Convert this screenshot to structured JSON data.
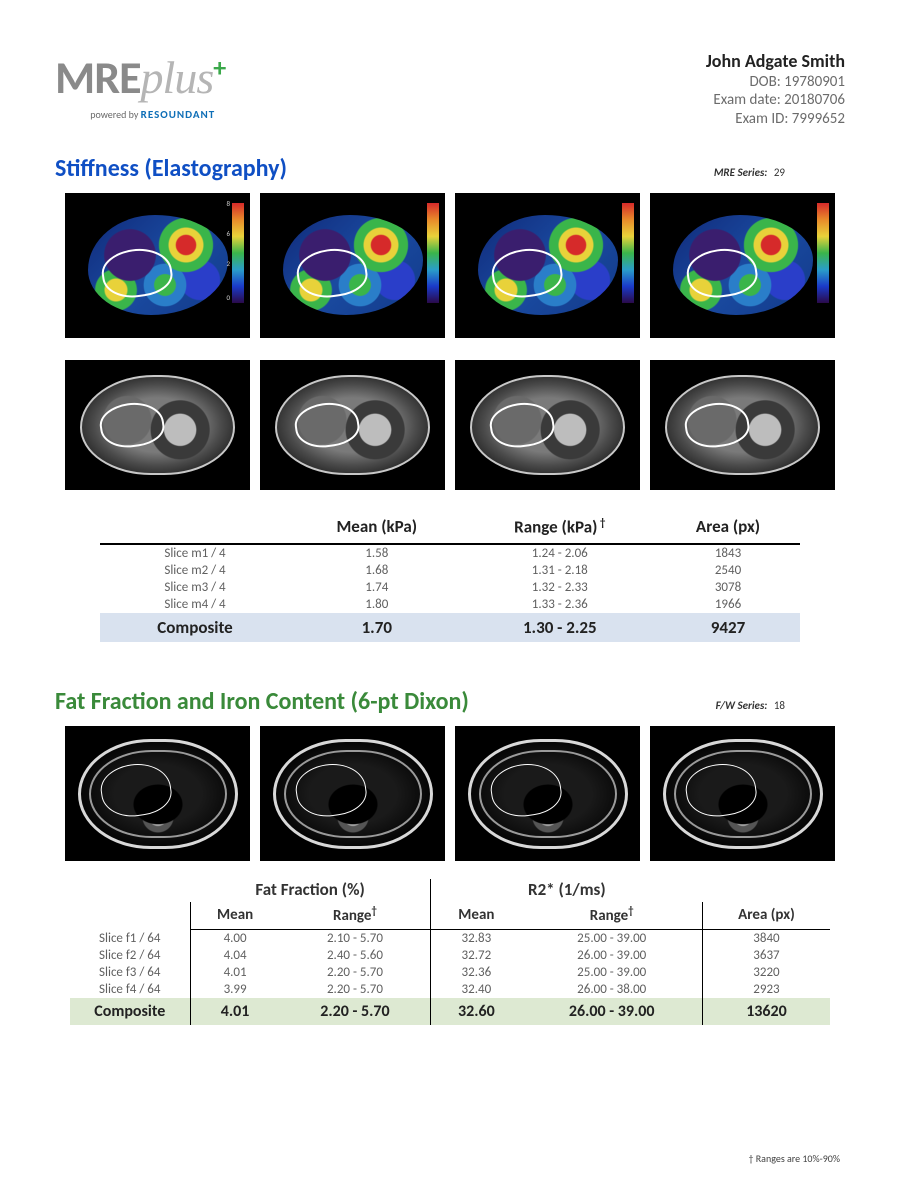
{
  "logo": {
    "mre": "MRE",
    "plus": "plus",
    "sign": "+",
    "powered": "powered by",
    "brand": "RESOUNDANT"
  },
  "patient": {
    "name": "John Adgate Smith",
    "dob_label": "DOB: 19780901",
    "exam_date_label": "Exam date: 20180706",
    "exam_id_label": "Exam ID: 7999652"
  },
  "stiffness": {
    "title": "Stiffness (Elastography)",
    "series_label": "MRE Series:",
    "series_num": "29",
    "colorbar": {
      "max": "8",
      "t1": "6",
      "t2": "4",
      "t3": "2",
      "min": "0"
    },
    "table": {
      "headers": {
        "mean": "Mean (kPa)",
        "range": "Range (kPa)",
        "area": "Area (px)"
      },
      "rows": [
        {
          "label": "Slice m1 / 4",
          "mean": "1.58",
          "range": "1.24 - 2.06",
          "area": "1843"
        },
        {
          "label": "Slice m2 / 4",
          "mean": "1.68",
          "range": "1.31 - 2.18",
          "area": "2540"
        },
        {
          "label": "Slice m3 / 4",
          "mean": "1.74",
          "range": "1.32 - 2.33",
          "area": "3078"
        },
        {
          "label": "Slice m4 / 4",
          "mean": "1.80",
          "range": "1.33 - 2.36",
          "area": "1966"
        }
      ],
      "composite": {
        "label": "Composite",
        "mean": "1.70",
        "range": "1.30 - 2.25",
        "area": "9427"
      }
    }
  },
  "fat": {
    "title": "Fat Fraction and Iron Content (6-pt Dixon)",
    "series_label": "F/W Series:",
    "series_num": "18",
    "table": {
      "group_headers": {
        "ff": "Fat Fraction (%)",
        "r2": "R2* (1/ms)"
      },
      "sub_headers": {
        "mean": "Mean",
        "range": "Range",
        "area": "Area (px)"
      },
      "rows": [
        {
          "label": "Slice f1 / 64",
          "ff_mean": "4.00",
          "ff_range": "2.10 - 5.70",
          "r2_mean": "32.83",
          "r2_range": "25.00 - 39.00",
          "area": "3840"
        },
        {
          "label": "Slice f2 / 64",
          "ff_mean": "4.04",
          "ff_range": "2.40 - 5.60",
          "r2_mean": "32.72",
          "r2_range": "26.00 - 39.00",
          "area": "3637"
        },
        {
          "label": "Slice f3 / 64",
          "ff_mean": "4.01",
          "ff_range": "2.20 - 5.70",
          "r2_mean": "32.36",
          "r2_range": "25.00 - 39.00",
          "area": "3220"
        },
        {
          "label": "Slice f4 / 64",
          "ff_mean": "3.99",
          "ff_range": "2.20 - 5.70",
          "r2_mean": "32.40",
          "r2_range": "26.00 - 38.00",
          "area": "2923"
        }
      ],
      "composite": {
        "label": "Composite",
        "ff_mean": "4.01",
        "ff_range": "2.20 - 5.70",
        "r2_mean": "32.60",
        "r2_range": "26.00 - 39.00",
        "area": "13620"
      }
    }
  },
  "footnote": "† Ranges are 10%-90%",
  "colors": {
    "title_blue": "#0f4fc4",
    "title_green": "#3a8a3a",
    "composite_blue_bg": "#d9e2ef",
    "composite_green_bg": "#dde9d2",
    "text_muted": "#606060"
  }
}
